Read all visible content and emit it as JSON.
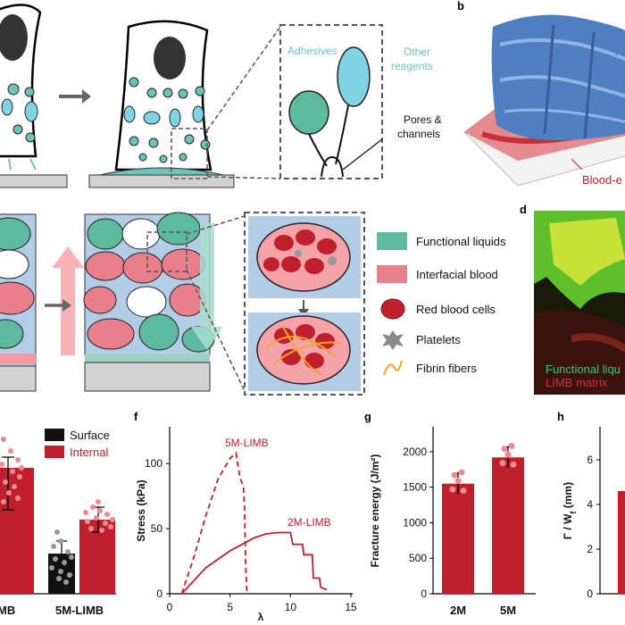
{
  "panels": {
    "a": {
      "callout_labels": [
        "Adhesives",
        "Other reagents",
        "Pores & channels"
      ]
    },
    "b": {
      "letter": "b",
      "label": "Blood-e"
    },
    "d": {
      "letter": "d",
      "legend": [
        "Functional liqu",
        "LIMB matrix"
      ]
    },
    "c_legend": {
      "items": [
        "Functional liquids",
        "Interfacial blood",
        "Red blood cells",
        "Platelets",
        "Fibrin fibers"
      ]
    },
    "e": {
      "legend": [
        "Surface",
        "Internal"
      ],
      "x_tick_labels": [
        "MB",
        "5M-LIMB"
      ]
    },
    "f": {
      "letter": "f"
    },
    "g": {
      "letter": "g"
    },
    "h": {
      "letter": "h"
    }
  },
  "chart_data": [
    {
      "panel": "e",
      "type": "bar",
      "categories": [
        "MB",
        "5M-LIMB"
      ],
      "series": [
        {
          "name": "Surface",
          "values": [
            null,
            0.5
          ]
        },
        {
          "name": "Internal",
          "values": [
            1.0,
            0.58
          ]
        }
      ],
      "colors": {
        "Surface": "#111111",
        "Internal": "#c0202b"
      }
    },
    {
      "panel": "f",
      "type": "line",
      "xlabel": "λ",
      "ylabel": "Stress (kPa)",
      "xlim": [
        0,
        15
      ],
      "ylim": [
        0,
        120
      ],
      "x_ticks": [
        0,
        5,
        10,
        15
      ],
      "y_ticks": [
        0,
        50,
        100
      ],
      "series": [
        {
          "name": "5M-LIMB",
          "style": "dashed",
          "x": [
            1,
            2,
            3,
            4,
            5,
            5.5,
            5.8,
            6.1,
            6.2,
            6.3,
            6.4
          ],
          "y": [
            0,
            28,
            60,
            88,
            104,
            108,
            90,
            82,
            66,
            20,
            0
          ]
        },
        {
          "name": "2M-LIMB",
          "style": "solid",
          "x": [
            1,
            3,
            5,
            7,
            8,
            9,
            10,
            10.2,
            11,
            11.1,
            11.8,
            11.9,
            12.4,
            12.5,
            13
          ],
          "y": [
            0,
            20,
            33,
            43,
            46,
            47,
            47,
            38,
            38,
            30,
            30,
            12,
            12,
            5,
            3
          ]
        }
      ]
    },
    {
      "panel": "g",
      "type": "bar",
      "ylabel": "Fracture energy (J/m²)",
      "categories": [
        "2M",
        "5M"
      ],
      "values": [
        1550,
        1920
      ],
      "ylim": [
        0,
        2200
      ],
      "y_ticks": [
        0,
        500,
        1000,
        1500,
        2000
      ],
      "color": "#c0202b"
    },
    {
      "panel": "h",
      "type": "bar",
      "ylabel": "Γ / W_f (mm)",
      "values": [
        4.6
      ],
      "ylim": [
        0,
        7
      ],
      "y_ticks": [
        0,
        2,
        4,
        6
      ],
      "color": "#c0202b"
    }
  ]
}
